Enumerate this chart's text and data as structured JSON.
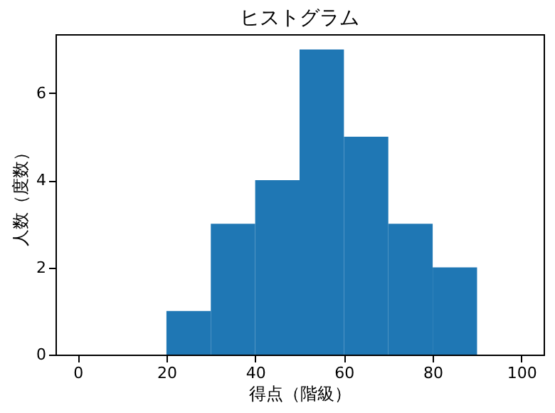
{
  "chart_data": {
    "type": "histogram",
    "title": "ヒストグラム",
    "xlabel": "得点（階級）",
    "ylabel": "人数（度数）",
    "bins": [
      20,
      30,
      40,
      50,
      60,
      70,
      80,
      90
    ],
    "values": [
      1,
      3,
      4,
      7,
      5,
      3,
      2
    ],
    "color": "#1f77b4",
    "xlim": [
      -5,
      105
    ],
    "xticks": [
      0,
      20,
      40,
      60,
      80,
      100
    ],
    "ylim": [
      0,
      7.35
    ],
    "yticks": [
      0,
      2,
      4,
      6
    ],
    "grid": false
  }
}
